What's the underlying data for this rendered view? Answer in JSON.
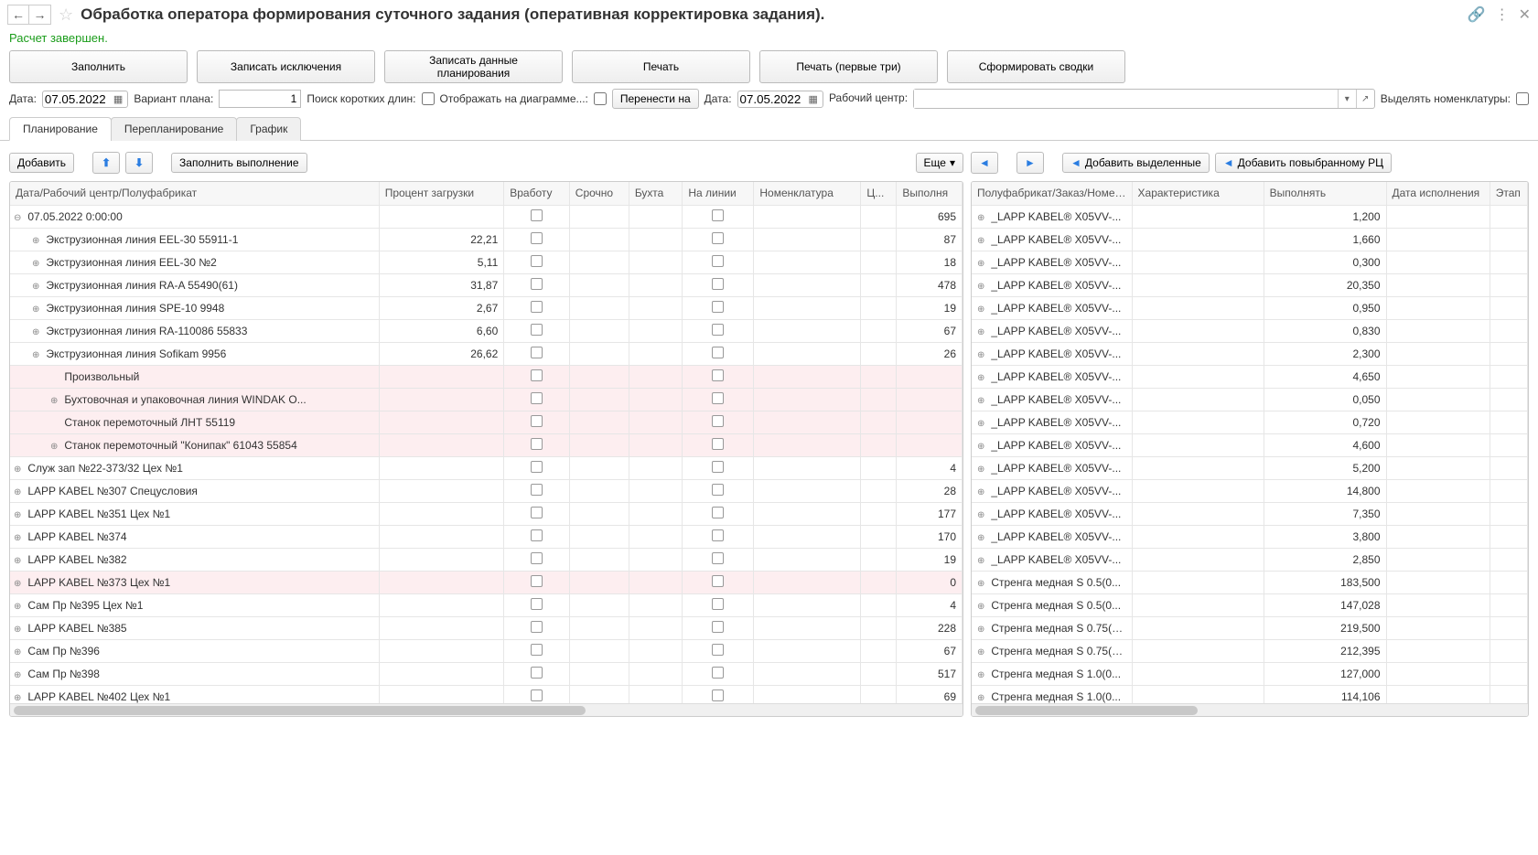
{
  "title": "Обработка оператора формирования суточного задания (оперативная корректировка задания).",
  "status": "Расчет завершен.",
  "mainButtons": {
    "fill": "Заполнить",
    "writeExcl": "Записать исключения",
    "writePlanData": "Записать данные планирования",
    "print": "Печать",
    "printFirst3": "Печать (первые три)",
    "genSummary": "Сформировать сводки"
  },
  "filters": {
    "dateLabel": "Дата:",
    "date1": "07.05.2022",
    "variantLabel": "Вариант плана:",
    "variant": "1",
    "shortLenLabel": "Поиск коротких длин:",
    "showDiagLabel": "Отображать на диаграмме...:",
    "moveToBtn": "Перенести на",
    "date2Label": "Дата:",
    "date2": "07.05.2022",
    "wcLabel": "Рабочий центр:",
    "highlightLabel": "Выделять номенклатуры:"
  },
  "tabs": {
    "planning": "Планирование",
    "replanning": "Перепланирование",
    "schedule": "График"
  },
  "leftToolbar": {
    "add": "Добавить",
    "fillDone": "Заполнить выполнение",
    "more": "Еще"
  },
  "rightToolbar": {
    "addSelected": "Добавить выделенные",
    "addToWC": "Добавить повыбранному РЦ"
  },
  "leftCols": {
    "tree": "Дата/Рабочий центр/Полуфабрикат",
    "load": "Процент загрузки",
    "inwork": "Вработу",
    "urgent": "Срочно",
    "coil": "Бухта",
    "online": "На линии",
    "nomen": "Номенклатура",
    "c7": "Ц...",
    "done": "Выполня"
  },
  "leftRows": [
    {
      "i": 0,
      "t": "07.05.2022 0:00:00",
      "exp": "⊖",
      "load": "",
      "d": "695",
      "chk": true
    },
    {
      "i": 1,
      "t": "Экструзионная линия EEL-30 55911-1",
      "exp": "⊕",
      "load": "22,21",
      "d": "87",
      "chk": true
    },
    {
      "i": 1,
      "t": "Экструзионная линия EEL-30 №2",
      "exp": "⊕",
      "load": "5,11",
      "d": "18",
      "chk": true
    },
    {
      "i": 1,
      "t": "Экструзионная линия RA-A 55490(61)",
      "exp": "⊕",
      "load": "31,87",
      "d": "478",
      "chk": true
    },
    {
      "i": 1,
      "t": "Экструзионная линия SPE-10 9948",
      "exp": "⊕",
      "load": "2,67",
      "d": "19",
      "chk": true
    },
    {
      "i": 1,
      "t": "Экструзионная линия RA-110086 55833",
      "exp": "⊕",
      "load": "6,60",
      "d": "67",
      "chk": true
    },
    {
      "i": 1,
      "t": "Экструзионная линия Sofikam 9956",
      "exp": "⊕",
      "load": "26,62",
      "d": "26",
      "chk": true
    },
    {
      "i": 2,
      "t": "Произвольный",
      "exp": "",
      "load": "",
      "d": "",
      "chk": true,
      "pink": true
    },
    {
      "i": 2,
      "t": "Бухтовочная и упаковочная линия WINDAK O...",
      "exp": "⊕",
      "load": "",
      "d": "",
      "chk": true,
      "pink": true
    },
    {
      "i": 2,
      "t": "Станок перемоточный ЛНТ 55119",
      "exp": "",
      "load": "",
      "d": "",
      "chk": true,
      "pink": true
    },
    {
      "i": 2,
      "t": "Станок перемоточный \"Конипак\" 61043 55854",
      "exp": "⊕",
      "load": "",
      "d": "",
      "chk": true,
      "pink": true
    },
    {
      "i": 0,
      "t": "Служ зап №22-373/32  Цех №1",
      "exp": "⊕",
      "load": "",
      "d": "4",
      "chk": true
    },
    {
      "i": 0,
      "t": "LAPP KABEL №307 Спецусловия",
      "exp": "⊕",
      "load": "",
      "d": "28",
      "chk": true
    },
    {
      "i": 0,
      "t": "LAPP KABEL №351 Цех №1",
      "exp": "⊕",
      "load": "",
      "d": "177",
      "chk": true
    },
    {
      "i": 0,
      "t": "LAPP KABEL №374",
      "exp": "⊕",
      "load": "",
      "d": "170",
      "chk": true
    },
    {
      "i": 0,
      "t": "LAPP KABEL №382",
      "exp": "⊕",
      "load": "",
      "d": "19",
      "chk": true
    },
    {
      "i": 0,
      "t": "LAPP KABEL №373 Цех №1",
      "exp": "⊕",
      "load": "",
      "d": "0",
      "chk": true,
      "pink": true
    },
    {
      "i": 0,
      "t": "Сам Пр №395 Цех №1",
      "exp": "⊕",
      "load": "",
      "d": "4",
      "chk": true
    },
    {
      "i": 0,
      "t": "LAPP KABEL №385",
      "exp": "⊕",
      "load": "",
      "d": "228",
      "chk": true
    },
    {
      "i": 0,
      "t": "Сам Пр №396",
      "exp": "⊕",
      "load": "",
      "d": "67",
      "chk": true
    },
    {
      "i": 0,
      "t": "Сам Пр №398",
      "exp": "⊕",
      "load": "",
      "d": "517",
      "chk": true
    },
    {
      "i": 0,
      "t": "LAPP KABEL №402 Цех №1",
      "exp": "⊕",
      "load": "",
      "d": "69",
      "chk": true
    }
  ],
  "rightCols": {
    "item": "Полуфабрикат/Заказ/Номенк...",
    "char": "Характеристика",
    "exec": "Выполнять",
    "due": "Дата исполнения",
    "stage": "Этап"
  },
  "rightRows": [
    {
      "t": "_LAPP KABEL® X05VV-...",
      "v": "1,200"
    },
    {
      "t": "_LAPP KABEL® X05VV-...",
      "v": "1,660"
    },
    {
      "t": "_LAPP KABEL® X05VV-...",
      "v": "0,300"
    },
    {
      "t": "_LAPP KABEL® X05VV-...",
      "v": "20,350"
    },
    {
      "t": "_LAPP KABEL® X05VV-...",
      "v": "0,950"
    },
    {
      "t": "_LAPP KABEL® X05VV-...",
      "v": "0,830"
    },
    {
      "t": "_LAPP KABEL® X05VV-...",
      "v": "2,300"
    },
    {
      "t": "_LAPP KABEL® X05VV-...",
      "v": "4,650"
    },
    {
      "t": "_LAPP KABEL® X05VV-...",
      "v": "0,050"
    },
    {
      "t": "_LAPP KABEL® X05VV-...",
      "v": "0,720"
    },
    {
      "t": "_LAPP KABEL® X05VV-...",
      "v": "4,600"
    },
    {
      "t": "_LAPP KABEL® X05VV-...",
      "v": "5,200"
    },
    {
      "t": "_LAPP KABEL® X05VV-...",
      "v": "14,800"
    },
    {
      "t": "_LAPP KABEL® X05VV-...",
      "v": "7,350"
    },
    {
      "t": "_LAPP KABEL® X05VV-...",
      "v": "3,800"
    },
    {
      "t": "_LAPP KABEL® X05VV-...",
      "v": "2,850"
    },
    {
      "t": "Стренга медная S 0.5(0...",
      "v": "183,500"
    },
    {
      "t": "Стренга медная S 0.5(0...",
      "v": "147,028"
    },
    {
      "t": "Стренга медная S 0.75(0...",
      "v": "219,500"
    },
    {
      "t": "Стренга медная S 0.75(0...",
      "v": "212,395"
    },
    {
      "t": "Стренга медная S 1.0(0...",
      "v": "127,000"
    },
    {
      "t": "Стренга медная S 1.0(0...",
      "v": "114,106"
    }
  ]
}
